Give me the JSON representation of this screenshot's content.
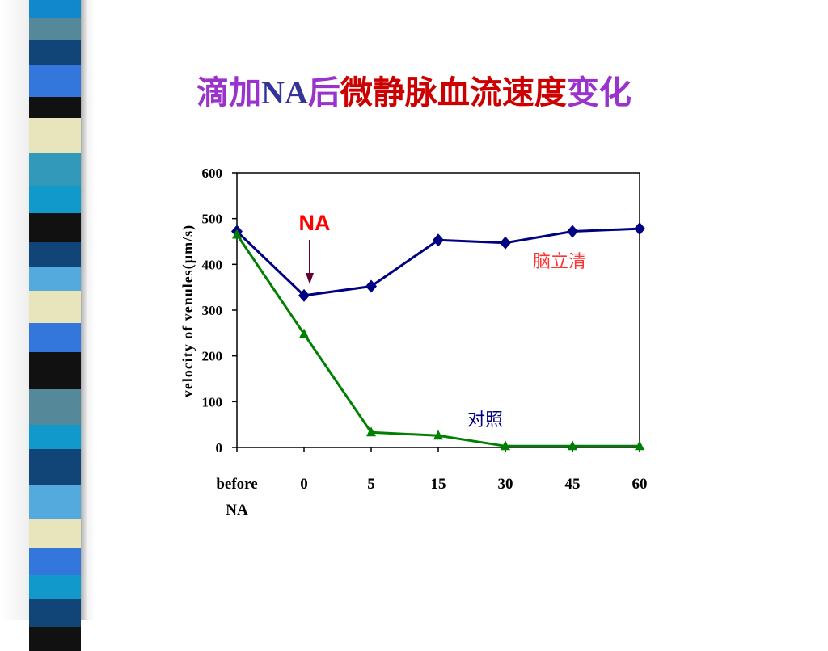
{
  "title": {
    "part1": "滴加",
    "part2": "NA",
    "part3": "后",
    "part4": "微静脉血流速度",
    "part5": "变化"
  },
  "chart_data": {
    "type": "line",
    "categories": [
      "before NA",
      "0",
      "5",
      "15",
      "30",
      "45",
      "60"
    ],
    "category_lines": [
      [
        "before",
        "NA"
      ],
      [
        "0"
      ],
      [
        "5"
      ],
      [
        "15"
      ],
      [
        "30"
      ],
      [
        "45"
      ],
      [
        "60"
      ]
    ],
    "ylabel": "velocity of venules(µm/s)",
    "ylim": [
      0,
      600
    ],
    "yticks": [
      "0",
      "100",
      "200",
      "300",
      "400",
      "500",
      "600"
    ],
    "grid": false,
    "series": [
      {
        "name": "脑立清",
        "color": "#000080",
        "marker": "diamond",
        "values": [
          472,
          332,
          352,
          453,
          447,
          472,
          478
        ]
      },
      {
        "name": "对照",
        "color": "#008000",
        "marker": "triangle",
        "values": [
          465,
          248,
          33,
          26,
          3,
          3,
          3
        ]
      }
    ],
    "annotations": [
      {
        "text": "NA",
        "color": "#ff0000",
        "at_category": 1
      }
    ],
    "label_colors": {
      "series0": "#ff3333",
      "series1": "#000080"
    }
  },
  "decor": {
    "stripe_colors": [
      "#1188cc",
      "#558899",
      "#114477",
      "#3377dd",
      "#111111",
      "#e8e4bb",
      "#3399bb",
      "#1199cc",
      "#111111",
      "#114477",
      "#55aadd",
      "#e8e4bb",
      "#3377dd",
      "#111111",
      "#558899",
      "#1199cc",
      "#114477",
      "#55aadd",
      "#e8e4bb",
      "#3377dd",
      "#1199cc",
      "#114477",
      "#111111"
    ],
    "stripe_heights": [
      22,
      28,
      30,
      40,
      26,
      44,
      40,
      34,
      36,
      30,
      30,
      40,
      36,
      46,
      44,
      30,
      44,
      42,
      36,
      34,
      30,
      34,
      30
    ]
  }
}
